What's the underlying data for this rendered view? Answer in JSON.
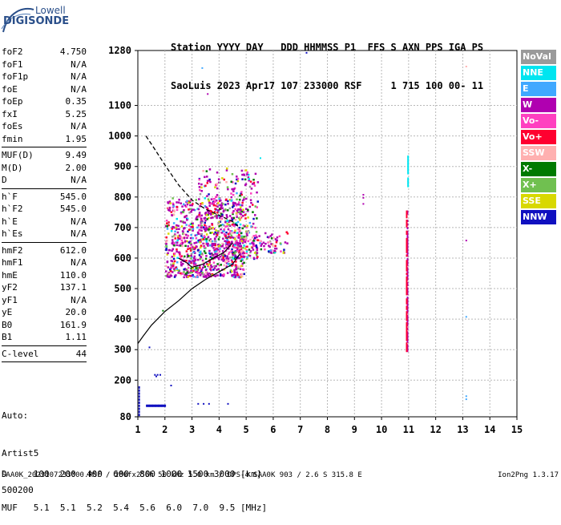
{
  "logo": {
    "top": "Lowell",
    "main": "DIGISONDE"
  },
  "header": {
    "line1": "Station YYYY DAY   DDD HHMMSS P1  FFS S AXN PPS IGA PS",
    "line2": "SaoLuis 2023 Apr17 107 233000 RSF     1 715 100 00- 11"
  },
  "params_group1": [
    {
      "label": "foF2",
      "value": "4.750"
    },
    {
      "label": "foF1",
      "value": "N/A"
    },
    {
      "label": "foF1p",
      "value": "N/A"
    },
    {
      "label": "foE",
      "value": "N/A"
    },
    {
      "label": "foEp",
      "value": "0.35"
    },
    {
      "label": "fxI",
      "value": "5.25"
    },
    {
      "label": "foEs",
      "value": "N/A"
    },
    {
      "label": "fmin",
      "value": "1.95"
    }
  ],
  "params_group2": [
    {
      "label": "MUF(D)",
      "value": "9.49"
    },
    {
      "label": "M(D)",
      "value": "2.00"
    },
    {
      "label": "D",
      "value": "N/A"
    }
  ],
  "params_group3": [
    {
      "label": "h`F",
      "value": "545.0"
    },
    {
      "label": "h`F2",
      "value": "545.0"
    },
    {
      "label": "h`E",
      "value": "N/A"
    },
    {
      "label": "h`Es",
      "value": "N/A"
    }
  ],
  "params_group4": [
    {
      "label": "hmF2",
      "value": "612.0"
    },
    {
      "label": "hmF1",
      "value": "N/A"
    },
    {
      "label": "hmE",
      "value": "110.0"
    },
    {
      "label": "yF2",
      "value": "137.1"
    },
    {
      "label": "yF1",
      "value": "N/A"
    },
    {
      "label": "yE",
      "value": "20.0"
    },
    {
      "label": "B0",
      "value": "161.9"
    },
    {
      "label": "B1",
      "value": "1.11"
    }
  ],
  "params_group5": [
    {
      "label": "C-level",
      "value": "44"
    }
  ],
  "auto": {
    "line1": "Auto:",
    "line2": "Artist5",
    "line3": "500200"
  },
  "legend": [
    {
      "label": "NoVal",
      "color": "#9a9a9a"
    },
    {
      "label": "NNE",
      "color": "#00e5f0"
    },
    {
      "label": "E",
      "color": "#40a8ff"
    },
    {
      "label": "W",
      "color": "#b000b0"
    },
    {
      "label": "Vo-",
      "color": "#ff40c0"
    },
    {
      "label": "Vo+",
      "color": "#ff0030"
    },
    {
      "label": "SSW",
      "color": "#ffb0b0"
    },
    {
      "label": "X-",
      "color": "#007a00"
    },
    {
      "label": "X+",
      "color": "#70c050"
    },
    {
      "label": "SSE",
      "color": "#d8d800"
    },
    {
      "label": "NNW",
      "color": "#1010c0"
    }
  ],
  "bottom": {
    "line1": "D     100  200  400  600  800 1000 1500 3000 [km]",
    "line2": "MUF   5.1  5.1  5.2  5.4  5.6  6.0  7.0  9.5 [MHz]"
  },
  "footer": {
    "left": "SAA0K_2023107233000.RSF / 280fx256h 50 kHz 5.0 km / DPS-4 SAA0K 903 / 2.6 S 315.8 E",
    "right": "Ion2Png 1.3.17"
  },
  "chart_data": {
    "type": "scatter",
    "xlim": [
      1,
      15
    ],
    "ylim": [
      80,
      1280
    ],
    "xticks": [
      1,
      2,
      3,
      4,
      5,
      6,
      7,
      8,
      9,
      10,
      11,
      12,
      13,
      14,
      15
    ],
    "yticks": [
      80,
      200,
      300,
      400,
      500,
      600,
      700,
      800,
      900,
      1000,
      1100,
      1280
    ],
    "grid": true,
    "dashed_curve": [
      [
        1.3,
        1000
      ],
      [
        1.6,
        960
      ],
      [
        2.0,
        905
      ],
      [
        2.5,
        840
      ],
      [
        3.0,
        790
      ],
      [
        3.5,
        760
      ],
      [
        4.0,
        740
      ],
      [
        4.5,
        720
      ],
      [
        4.75,
        700
      ]
    ],
    "solid_curve": [
      [
        1.0,
        320
      ],
      [
        1.2,
        345
      ],
      [
        1.5,
        380
      ],
      [
        2.0,
        425
      ],
      [
        2.5,
        460
      ],
      [
        3.0,
        500
      ],
      [
        3.5,
        530
      ],
      [
        4.0,
        555
      ],
      [
        4.5,
        580
      ],
      [
        4.75,
        612
      ]
    ],
    "trace_curve": [
      [
        2.5,
        600
      ],
      [
        2.8,
        585
      ],
      [
        3.0,
        570
      ],
      [
        3.4,
        580
      ],
      [
        3.8,
        600
      ],
      [
        4.2,
        620
      ],
      [
        4.5,
        650
      ]
    ],
    "clusters": [
      {
        "x0": 2.0,
        "x1": 4.9,
        "y0": 540,
        "y1": 800,
        "n": 900
      },
      {
        "x0": 3.2,
        "x1": 5.4,
        "y0": 600,
        "y1": 900,
        "n": 320
      },
      {
        "x0": 4.5,
        "x1": 6.5,
        "y0": 620,
        "y1": 690,
        "n": 120
      }
    ],
    "vertical_lines": [
      {
        "x": 10.93,
        "y0": 300,
        "y1": 760,
        "color": "#b000b0"
      },
      {
        "x": 10.9,
        "y0": 300,
        "y1": 760,
        "color": "#ff0030"
      },
      {
        "x": 10.95,
        "y0": 840,
        "y1": 940,
        "color": "#00e5f0"
      }
    ],
    "extra_points": [
      {
        "x": 9.3,
        "y": 780,
        "color": "#b000b0"
      },
      {
        "x": 9.3,
        "y": 800,
        "color": "#b000b0"
      },
      {
        "x": 9.3,
        "y": 810,
        "color": "#b000b0"
      },
      {
        "x": 13.1,
        "y": 660,
        "color": "#b000b0"
      },
      {
        "x": 13.1,
        "y": 410,
        "color": "#40a8ff"
      },
      {
        "x": 13.1,
        "y": 150,
        "color": "#40a8ff"
      },
      {
        "x": 13.1,
        "y": 140,
        "color": "#40a8ff"
      },
      {
        "x": 13.1,
        "y": 1230,
        "color": "#ffb0b0"
      },
      {
        "x": 3.35,
        "y": 1225,
        "color": "#40a8ff"
      },
      {
        "x": 3.55,
        "y": 1140,
        "color": "#b000b0"
      },
      {
        "x": 7.2,
        "y": 1275,
        "color": "#1010c0"
      },
      {
        "x": 5.5,
        "y": 930,
        "color": "#00e5f0"
      },
      {
        "x": 1.6,
        "y": 220,
        "color": "#1010c0"
      },
      {
        "x": 1.7,
        "y": 220,
        "color": "#1010c0"
      },
      {
        "x": 1.8,
        "y": 220,
        "color": "#1010c0"
      },
      {
        "x": 1.65,
        "y": 215,
        "color": "#1010c0"
      },
      {
        "x": 2.2,
        "y": 185,
        "color": "#1010c0"
      },
      {
        "x": 1.9,
        "y": 430,
        "color": "#007a00"
      },
      {
        "x": 1.4,
        "y": 310,
        "color": "#1010c0"
      }
    ],
    "low_band": {
      "x0": 1.3,
      "x1": 2.0,
      "y": 120,
      "color": "#1010c0"
    },
    "low_band2": [
      {
        "x": 3.2,
        "y": 125
      },
      {
        "x": 3.4,
        "y": 125
      },
      {
        "x": 3.6,
        "y": 125
      },
      {
        "x": 4.3,
        "y": 125
      }
    ],
    "left_edge": {
      "x": 1.02,
      "y0": 90,
      "y1": 180,
      "color": "#1010c0"
    }
  }
}
